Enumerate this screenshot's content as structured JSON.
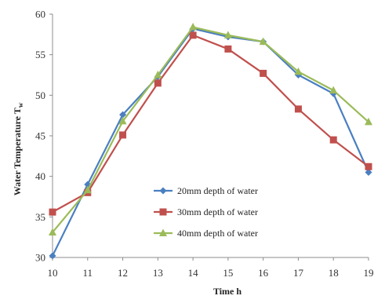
{
  "chart_data": {
    "type": "line",
    "title": "",
    "xlabel": "Time h",
    "ylabel": "Water Temperature T",
    "ylabel_subscript": "w",
    "x": [
      10,
      11,
      12,
      13,
      14,
      15,
      16,
      17,
      18,
      19
    ],
    "xlim": [
      10,
      19
    ],
    "ylim": [
      30,
      60
    ],
    "yticks": [
      30,
      35,
      40,
      45,
      50,
      55,
      60
    ],
    "grid": false,
    "legend_position": "bottom-center",
    "series": [
      {
        "name": "20mm depth of water",
        "color": "#4a7fc1",
        "marker": "diamond",
        "values": [
          30.2,
          39.0,
          47.6,
          52.3,
          58.2,
          57.2,
          56.6,
          52.5,
          50.2,
          40.5
        ]
      },
      {
        "name": "30mm depth of water",
        "color": "#c0504d",
        "marker": "square",
        "values": [
          35.6,
          38.0,
          45.1,
          51.5,
          57.4,
          55.7,
          52.7,
          48.3,
          44.5,
          41.2
        ]
      },
      {
        "name": "40mm depth of water",
        "color": "#9bbb59",
        "marker": "triangle",
        "values": [
          33.1,
          38.3,
          46.8,
          52.5,
          58.4,
          57.4,
          56.6,
          52.9,
          50.6,
          46.7
        ]
      }
    ]
  }
}
